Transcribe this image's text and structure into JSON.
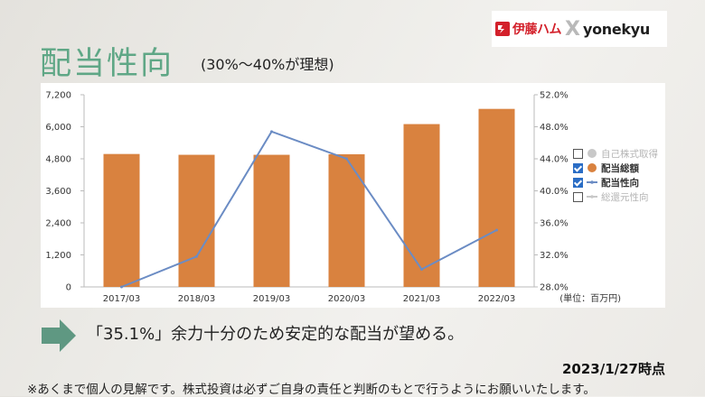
{
  "logo": {
    "left_text": "伊藤ハム",
    "separator": "X",
    "right_text": "yonekyu"
  },
  "title": "配当性向",
  "subtitle": "(30%〜40%が理想)",
  "note": "「35.1%」余力十分のため安定的な配当が望める。",
  "date": "2023/1/27時点",
  "disclaimer": "※あくまで個人の見解です。株式投資は必ずご自身の責任と判断のもとで行うようにお願いいたします。",
  "colors": {
    "bar": "#d9823f",
    "line": "#6b8cc4",
    "title": "#5fa786",
    "arrow": "#5f9882"
  },
  "chart_data": {
    "type": "bar",
    "categories": [
      "2017/03",
      "2018/03",
      "2019/03",
      "2020/03",
      "2021/03",
      "2022/03"
    ],
    "series": [
      {
        "name": "配当総額",
        "type": "bar",
        "axis": "left",
        "values": [
          4980,
          4950,
          4950,
          4970,
          6100,
          6670
        ]
      },
      {
        "name": "配当性向",
        "type": "line",
        "axis": "right",
        "values": [
          28.0,
          31.8,
          47.4,
          44.0,
          30.2,
          35.1
        ]
      }
    ],
    "left_axis": {
      "ylim": [
        0,
        7200
      ],
      "ticks": [
        0,
        1200,
        2400,
        3600,
        4800,
        6000,
        7200
      ],
      "tick_labels": [
        "0",
        "1,200",
        "2,400",
        "3,600",
        "4,800",
        "6,000",
        "7,200"
      ]
    },
    "right_axis": {
      "ylim": [
        28,
        52
      ],
      "ticks": [
        28,
        32,
        36,
        40,
        44,
        48,
        52
      ],
      "tick_labels": [
        "28.0%",
        "32.0%",
        "36.0%",
        "40.0%",
        "44.0%",
        "48.0%",
        "52.0%"
      ]
    },
    "unit_label": "(単位：百万円)",
    "legend": [
      {
        "label": "自己株式取得",
        "checked": false,
        "symbol": "circle",
        "color": "#c8c8c8"
      },
      {
        "label": "配当総額",
        "checked": true,
        "symbol": "circle",
        "color": "#d9823f"
      },
      {
        "label": "配当性向",
        "checked": true,
        "symbol": "line-dot",
        "color": "#6b8cc4"
      },
      {
        "label": "総還元性向",
        "checked": false,
        "symbol": "line-dot",
        "color": "#c8c8c8"
      }
    ],
    "grid": false,
    "legend_position": "right"
  }
}
